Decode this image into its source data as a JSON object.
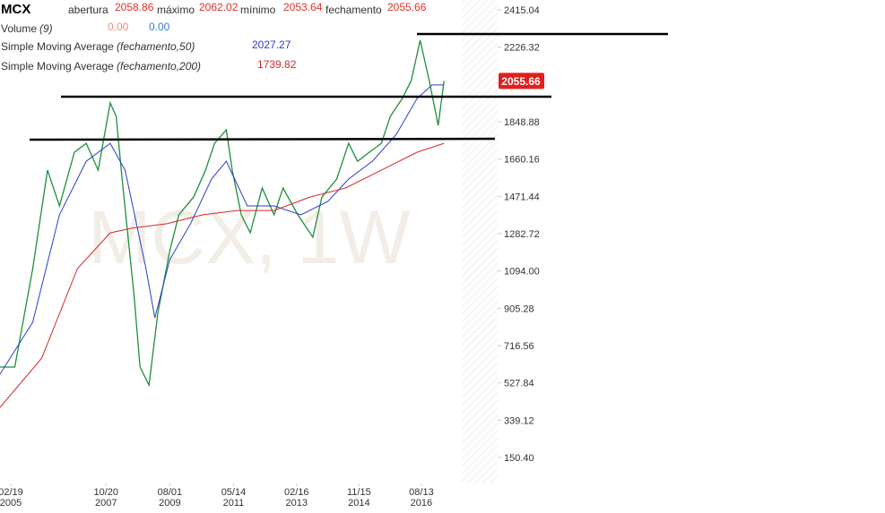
{
  "header": {
    "symbol": "MCX",
    "open_label": "abertura",
    "open": "2058.86",
    "high_label": "máximo",
    "high": "2062.02",
    "low_label": "mínimo",
    "low": "2053.64",
    "close_label": "fechamento",
    "close": "2055.66",
    "volume_label": "Volume",
    "volume_param": "(9)",
    "volume_a": "0.00",
    "volume_b": "0.00",
    "sma50_param": "(fechamento,50)",
    "sma50_value": "2027.27",
    "sma200_param": "(fechamento,200)",
    "sma200_value": "1739.82"
  },
  "chart_data": {
    "type": "line",
    "watermark": "MCX, 1W",
    "xlim": [
      "2004-11",
      "2018-10"
    ],
    "ylim": [
      19.2,
      2464.9
    ],
    "xticks": [
      {
        "value": "2005-02-19",
        "label": "02/19 2005"
      },
      {
        "value": "2007-10-20",
        "label": "10/20 2007"
      },
      {
        "value": "2009-08-01",
        "label": "08/01 2009"
      },
      {
        "value": "2011-05-14",
        "label": "05/14 2011"
      },
      {
        "value": "2013-02-16",
        "label": "02/16 2013"
      },
      {
        "value": "2014-11-15",
        "label": "11/15 2014"
      },
      {
        "value": "2016-08-13",
        "label": "08/13 2016"
      }
    ],
    "yticks": [
      2415.04,
      2226.32,
      1848.88,
      1660.16,
      1471.44,
      1282.72,
      {
        "value": 1094,
        "label": "1094.00"
      },
      905.28,
      716.56,
      527.84,
      339.12,
      {
        "value": 150.4,
        "label": "150.40"
      }
    ],
    "series": [
      {
        "color": "#1e8f3a",
        "x": [
          "2004-11",
          "2005-04",
          "2005-10",
          "2006-03",
          "2006-07",
          "2006-12",
          "2007-04",
          "2007-08",
          "2007-12",
          "2008-02",
          "2008-04",
          "2008-08",
          "2008-10",
          "2009-01",
          "2009-04",
          "2009-08",
          "2009-11",
          "2010-04",
          "2010-08",
          "2010-11",
          "2011-03",
          "2011-05",
          "2011-08",
          "2011-11",
          "2012-03",
          "2012-07",
          "2012-10",
          "2013-03",
          "2013-08",
          "2013-11",
          "2014-04",
          "2014-08",
          "2014-11",
          "2015-03",
          "2015-07",
          "2015-10",
          "2016-02",
          "2016-05",
          "2016-08",
          "2016-11",
          "2017-02",
          "2017-04"
        ],
        "values": [
          608,
          608,
          1106,
          1604,
          1423,
          1695,
          1740,
          1604,
          1944,
          1876,
          1559,
          970,
          608,
          517,
          880,
          1197,
          1378,
          1468,
          1604,
          1740,
          1808,
          1604,
          1378,
          1287,
          1514,
          1378,
          1514,
          1378,
          1265,
          1468,
          1559,
          1740,
          1649,
          1695,
          1740,
          1876,
          1967,
          2057,
          2261,
          2057,
          1831,
          2055.66
        ]
      },
      {
        "name": "Simple Moving Average",
        "color": "#2b3ec9",
        "x": [
          "2004-11",
          "2005-10",
          "2006-07",
          "2007-04",
          "2007-12",
          "2008-05",
          "2008-12",
          "2009-03",
          "2009-08",
          "2010-03",
          "2010-10",
          "2011-03",
          "2011-10",
          "2012-07",
          "2013-04",
          "2014-01",
          "2014-08",
          "2015-04",
          "2015-12",
          "2016-07",
          "2016-12",
          "2017-04"
        ],
        "values": [
          572,
          835,
          1378,
          1649,
          1740,
          1604,
          1106,
          857,
          1152,
          1333,
          1559,
          1649,
          1423,
          1423,
          1378,
          1446,
          1559,
          1649,
          1785,
          1967,
          2035,
          2035
        ]
      },
      {
        "name": "Simple Moving Average",
        "color": "#d42a2a",
        "x": [
          "2004-11",
          "2006-01",
          "2007-01",
          "2007-12",
          "2008-07",
          "2009-07",
          "2010-07",
          "2011-07",
          "2012-07",
          "2013-07",
          "2014-07",
          "2015-07",
          "2016-07",
          "2017-04"
        ],
        "values": [
          404,
          653,
          1106,
          1287,
          1310,
          1333,
          1378,
          1400,
          1400,
          1468,
          1514,
          1604,
          1695,
          1740
        ]
      }
    ]
  }
}
